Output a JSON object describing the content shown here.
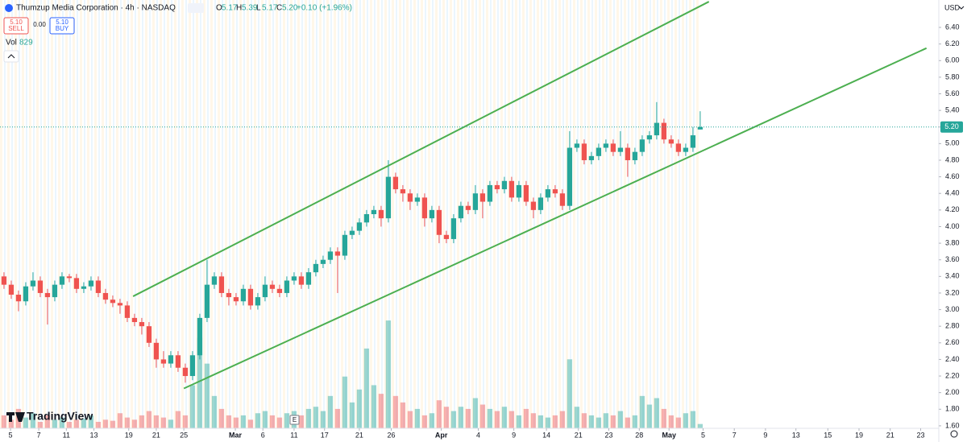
{
  "chart_data": {
    "type": "candlestick",
    "title": "Thumzup Media Corporation · 4h · NASDAQ",
    "legend": [
      {
        "label": "O",
        "value": "5.17"
      },
      {
        "label": "H",
        "value": "5.39"
      },
      {
        "label": "L",
        "value": "5.17"
      },
      {
        "label": "C",
        "value": "5.20"
      }
    ],
    "change": "+0.10 (+1.96%)",
    "sell": {
      "price": "5.10",
      "label": "SELL"
    },
    "spread": "0.00",
    "buy": {
      "price": "5.10",
      "label": "BUY"
    },
    "volume_label": "Vol",
    "volume_value": "829",
    "currency": "USD",
    "brand": "TradingView",
    "event_marker": "E",
    "up_color": "#26a69a",
    "down_color": "#ef5350",
    "trend_color": "#4caf50",
    "open": [
      3.4,
      3.3,
      3.18,
      3.1,
      3.28,
      3.35,
      3.2,
      3.15,
      3.3,
      3.4,
      3.38,
      3.25,
      3.28,
      3.35,
      3.2,
      3.12,
      3.08,
      3.05,
      2.9,
      2.85,
      2.8,
      2.6,
      2.4,
      2.35,
      2.45,
      2.3,
      2.2,
      2.45,
      2.9,
      3.3,
      3.4,
      3.2,
      3.15,
      3.1,
      3.25,
      3.05,
      3.15,
      3.3,
      3.25,
      3.2,
      3.35,
      3.4,
      3.3,
      3.45,
      3.55,
      3.6,
      3.7,
      3.65,
      3.9,
      3.95,
      4.05,
      4.15,
      4.2,
      4.1,
      4.6,
      4.45,
      4.4,
      4.3,
      4.35,
      4.1,
      4.2,
      3.9,
      3.85,
      4.1,
      4.25,
      4.2,
      4.4,
      4.3,
      4.5,
      4.45,
      4.55,
      4.35,
      4.5,
      4.3,
      4.2,
      4.35,
      4.45,
      4.4,
      4.25,
      4.95,
      5.0,
      4.8,
      4.85,
      4.95,
      5.0,
      4.9,
      4.95,
      4.8,
      4.9,
      5.05,
      5.1,
      5.25,
      5.05,
      5.0,
      4.9,
      4.95,
      5.17
    ],
    "high": [
      3.45,
      3.35,
      3.23,
      3.33,
      3.45,
      3.4,
      3.25,
      3.35,
      3.45,
      3.43,
      3.43,
      3.33,
      3.4,
      3.4,
      3.25,
      3.17,
      3.13,
      3.1,
      2.95,
      2.9,
      2.85,
      2.65,
      2.5,
      2.5,
      2.5,
      2.35,
      2.5,
      2.95,
      3.6,
      3.45,
      3.45,
      3.25,
      3.2,
      3.3,
      3.3,
      3.2,
      3.4,
      3.35,
      3.3,
      3.4,
      3.45,
      3.45,
      3.5,
      3.6,
      3.65,
      3.75,
      3.75,
      3.95,
      4.0,
      4.1,
      4.2,
      4.25,
      4.25,
      4.8,
      4.65,
      4.5,
      4.45,
      4.4,
      4.4,
      4.25,
      4.25,
      3.95,
      4.15,
      4.3,
      4.3,
      4.5,
      4.45,
      4.55,
      4.55,
      4.6,
      4.6,
      4.55,
      4.55,
      4.35,
      4.4,
      4.5,
      4.5,
      4.45,
      5.15,
      5.05,
      5.05,
      4.9,
      5.0,
      5.05,
      5.05,
      5.15,
      5.0,
      4.95,
      5.1,
      5.15,
      5.5,
      5.3,
      5.1,
      5.05,
      5.0,
      5.2,
      5.39
    ],
    "low": [
      3.25,
      3.13,
      2.98,
      3.05,
      3.23,
      3.15,
      2.82,
      3.1,
      3.25,
      3.33,
      3.2,
      3.2,
      3.23,
      3.15,
      3.07,
      3.03,
      2.95,
      2.85,
      2.8,
      2.7,
      2.55,
      2.3,
      2.3,
      2.3,
      2.25,
      2.12,
      2.15,
      2.4,
      2.85,
      3.25,
      3.15,
      3.05,
      3.05,
      3.05,
      3.0,
      3.0,
      3.1,
      3.2,
      3.15,
      3.15,
      3.3,
      3.25,
      3.25,
      3.4,
      3.5,
      3.55,
      3.2,
      3.6,
      3.85,
      3.9,
      4.0,
      4.1,
      4.0,
      4.05,
      4.4,
      4.3,
      4.2,
      4.25,
      4.0,
      4.05,
      3.8,
      3.8,
      3.8,
      4.05,
      4.15,
      4.15,
      4.1,
      4.25,
      4.4,
      4.4,
      4.3,
      4.3,
      4.25,
      4.1,
      4.15,
      4.3,
      4.35,
      4.2,
      4.2,
      4.9,
      4.75,
      4.75,
      4.8,
      4.9,
      4.85,
      4.85,
      4.6,
      4.75,
      4.85,
      5.0,
      5.05,
      5.0,
      4.95,
      4.85,
      4.85,
      4.9,
      5.17
    ],
    "close": [
      3.3,
      3.18,
      3.1,
      3.28,
      3.35,
      3.2,
      3.15,
      3.3,
      3.4,
      3.38,
      3.25,
      3.28,
      3.35,
      3.2,
      3.12,
      3.08,
      3.05,
      2.9,
      2.85,
      2.8,
      2.6,
      2.4,
      2.35,
      2.45,
      2.3,
      2.2,
      2.45,
      2.9,
      3.3,
      3.4,
      3.2,
      3.15,
      3.1,
      3.25,
      3.05,
      3.15,
      3.3,
      3.25,
      3.2,
      3.35,
      3.4,
      3.3,
      3.45,
      3.55,
      3.6,
      3.7,
      3.65,
      3.9,
      3.95,
      4.05,
      4.15,
      4.2,
      4.1,
      4.6,
      4.45,
      4.4,
      4.3,
      4.35,
      4.1,
      4.2,
      3.9,
      3.85,
      4.1,
      4.25,
      4.2,
      4.4,
      4.3,
      4.5,
      4.45,
      4.55,
      4.35,
      4.5,
      4.3,
      4.2,
      4.35,
      4.45,
      4.4,
      4.25,
      4.95,
      5.0,
      4.8,
      4.85,
      4.95,
      5.0,
      4.9,
      4.95,
      4.8,
      4.9,
      5.05,
      5.1,
      5.25,
      5.05,
      5.0,
      4.9,
      4.95,
      5.1,
      5.2
    ],
    "volume": [
      60,
      40,
      90,
      50,
      70,
      30,
      60,
      40,
      50,
      30,
      40,
      45,
      60,
      30,
      40,
      35,
      70,
      50,
      40,
      60,
      80,
      60,
      50,
      40,
      80,
      60,
      200,
      420,
      300,
      150,
      90,
      60,
      50,
      60,
      40,
      70,
      80,
      60,
      50,
      70,
      80,
      60,
      90,
      100,
      80,
      150,
      90,
      240,
      120,
      180,
      370,
      200,
      160,
      500,
      150,
      120,
      80,
      90,
      60,
      70,
      130,
      100,
      80,
      100,
      90,
      140,
      110,
      90,
      80,
      100,
      80,
      60,
      90,
      70,
      60,
      50,
      60,
      80,
      320,
      100,
      70,
      60,
      50,
      70,
      60,
      80,
      50,
      60,
      150,
      110,
      140,
      90,
      60,
      50,
      70,
      80,
      20
    ],
    "vlim": [
      0,
      560
    ],
    "xlim": [
      -0.55,
      128.9
    ],
    "xticks": [
      {
        "value": 0.9,
        "label": "5"
      },
      {
        "value": 4.8,
        "label": "7"
      },
      {
        "value": 8.6,
        "label": "11"
      },
      {
        "value": 12.4,
        "label": "13"
      },
      {
        "value": 17.2,
        "label": "19"
      },
      {
        "value": 21,
        "label": "21"
      },
      {
        "value": 24.8,
        "label": "25"
      },
      {
        "value": 31.9,
        "label": "Mar"
      },
      {
        "value": 35.7,
        "label": "6"
      },
      {
        "value": 40,
        "label": "11"
      },
      {
        "value": 44.2,
        "label": "17"
      },
      {
        "value": 49,
        "label": "21"
      },
      {
        "value": 53.4,
        "label": "26"
      },
      {
        "value": 60.3,
        "label": "Apr"
      },
      {
        "value": 65.4,
        "label": "4"
      },
      {
        "value": 70.3,
        "label": "9"
      },
      {
        "value": 74.8,
        "label": "14"
      },
      {
        "value": 79.2,
        "label": "21"
      },
      {
        "value": 83.4,
        "label": "23"
      },
      {
        "value": 87.6,
        "label": "28"
      },
      {
        "value": 91.7,
        "label": "May"
      },
      {
        "value": 96.4,
        "label": "5"
      },
      {
        "value": 100.7,
        "label": "7"
      },
      {
        "value": 105,
        "label": "9"
      },
      {
        "value": 109.2,
        "label": "13"
      },
      {
        "value": 113.6,
        "label": "15"
      },
      {
        "value": 117.9,
        "label": "19"
      },
      {
        "value": 122.2,
        "label": "21"
      },
      {
        "value": 126.4,
        "label": "23"
      }
    ],
    "ylim": [
      1.57,
      6.73
    ],
    "yticks": [
      {
        "value": 1.6,
        "label": "1.60"
      },
      {
        "value": 1.8,
        "label": "1.80"
      },
      {
        "value": 2,
        "label": "2.00"
      },
      {
        "value": 2.2,
        "label": "2.20"
      },
      {
        "value": 2.4,
        "label": "2.40"
      },
      {
        "value": 2.6,
        "label": "2.60"
      },
      {
        "value": 2.8,
        "label": "2.80"
      },
      {
        "value": 3,
        "label": "3.00"
      },
      {
        "value": 3.2,
        "label": "3.20"
      },
      {
        "value": 3.4,
        "label": "3.40"
      },
      {
        "value": 3.6,
        "label": "3.60"
      },
      {
        "value": 3.8,
        "label": "3.80"
      },
      {
        "value": 4,
        "label": "4.00"
      },
      {
        "value": 4.2,
        "label": "4.20"
      },
      {
        "value": 4.4,
        "label": "4.40"
      },
      {
        "value": 4.6,
        "label": "4.60"
      },
      {
        "value": 4.8,
        "label": "4.80"
      },
      {
        "value": 5,
        "label": "5.00"
      },
      {
        "value": 5.2,
        "label": "5.20"
      },
      {
        "value": 5.4,
        "label": "5.40"
      },
      {
        "value": 5.6,
        "label": "5.60"
      },
      {
        "value": 5.8,
        "label": "5.80"
      },
      {
        "value": 6,
        "label": "6.00"
      },
      {
        "value": 6.2,
        "label": "6.20"
      },
      {
        "value": 6.4,
        "label": "6.40"
      }
    ],
    "price_line": {
      "value": 5.2,
      "label": "5.20"
    },
    "trendlines": [
      {
        "x": [
          17.8,
          97.2
        ],
        "y": [
          3.16,
          6.71
        ]
      },
      {
        "x": [
          24.8,
          127.2
        ],
        "y": [
          2.05,
          6.15
        ]
      }
    ]
  }
}
